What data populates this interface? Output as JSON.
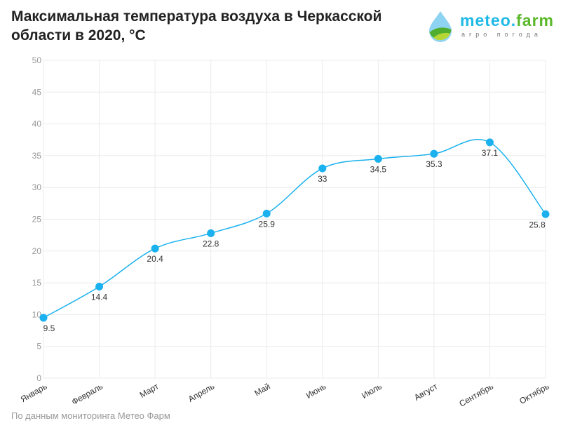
{
  "title": "Максимальная температура воздуха в Черкасской области в 2020, °С",
  "logo": {
    "brand_a": "meteo.",
    "brand_b": "farm",
    "tagline": "агро погода"
  },
  "source": "По данным мониторинга Метео Фарм",
  "colors": {
    "line": "#1ab1ee",
    "grid": "#ebebeb"
  },
  "chart_data": {
    "type": "line",
    "title": "Максимальная температура воздуха в Черкасской области в 2020, °С",
    "categories": [
      "Январь",
      "Февраль",
      "Март",
      "Апрель",
      "Май",
      "Июнь",
      "Июль",
      "Август",
      "Сентябрь",
      "Октябрь"
    ],
    "values": [
      9.5,
      14.4,
      20.4,
      22.8,
      25.9,
      33,
      34.5,
      35.3,
      37.1,
      25.8
    ],
    "ylim": [
      0,
      50
    ],
    "yticks": [
      0,
      5,
      10,
      15,
      20,
      25,
      30,
      35,
      40,
      45,
      50
    ],
    "grid": true,
    "xlabel": "",
    "ylabel": ""
  }
}
